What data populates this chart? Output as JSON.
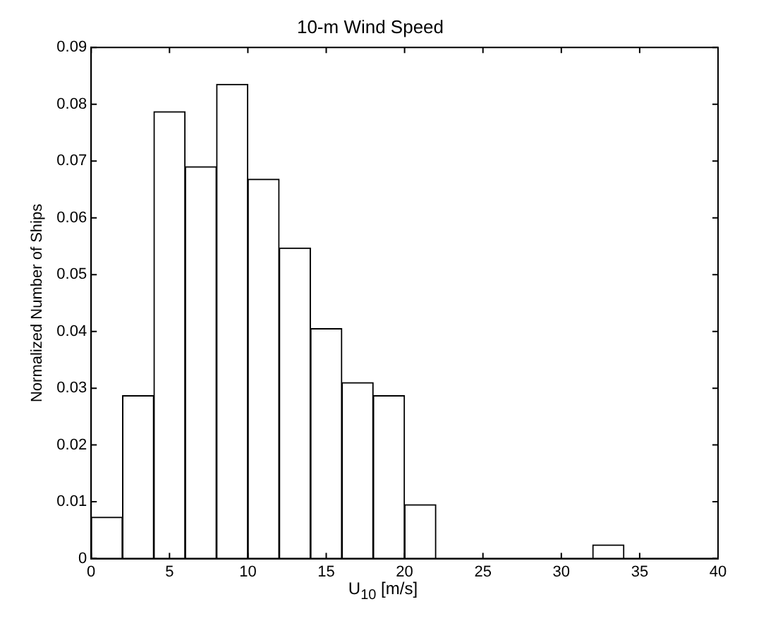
{
  "chart_data": {
    "type": "histogram",
    "title": "10-m Wind Speed",
    "xlabel": "U$_{10}$ [m/s]",
    "ylabel": "Normalized Number of Ships",
    "bins": [
      0,
      2,
      4,
      6,
      8,
      10,
      12,
      14,
      16,
      18,
      20,
      22,
      24,
      26,
      28,
      30,
      32,
      34,
      36
    ],
    "values": [
      0.0073,
      0.0287,
      0.0787,
      0.069,
      0.0835,
      0.0668,
      0.0547,
      0.0405,
      0.031,
      0.0287,
      0.0095,
      0,
      0,
      0,
      0,
      0,
      0.0024,
      0
    ],
    "color": "#ffffff",
    "xlim": [
      0,
      40
    ],
    "xticks": [
      0,
      5,
      10,
      15,
      20,
      25,
      30,
      35,
      40
    ],
    "ylim": [
      0,
      0.09
    ],
    "yticks": [
      0,
      0.01,
      0.02,
      0.03,
      0.04,
      0.05,
      0.06,
      0.07,
      0.08,
      0.09
    ],
    "grid": false,
    "legend": false
  }
}
